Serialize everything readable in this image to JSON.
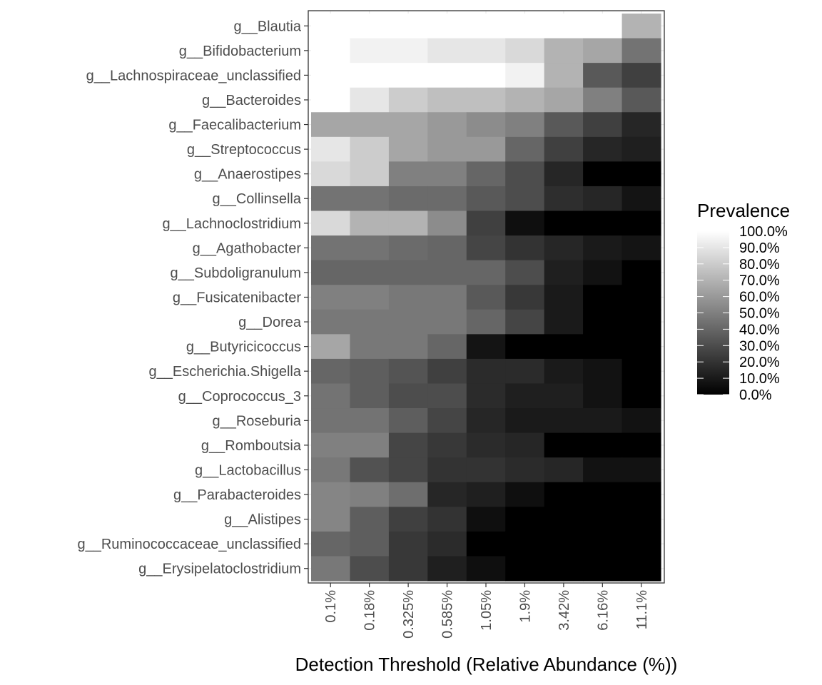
{
  "chart_data": {
    "type": "heatmap",
    "title": "",
    "xlabel": "Detection Threshold (Relative Abundance (%))",
    "ylabel": "",
    "x_categories": [
      "0.1%",
      "0.18%",
      "0.325%",
      "0.585%",
      "1.05%",
      "1.9%",
      "3.42%",
      "6.16%",
      "11.1%"
    ],
    "y_categories": [
      "g__Blautia",
      "g__Bifidobacterium",
      "g__Lachnospiraceae_unclassified",
      "g__Bacteroides",
      "g__Faecalibacterium",
      "g__Streptococcus",
      "g__Anaerostipes",
      "g__Collinsella",
      "g__Lachnoclostridium",
      "g__Agathobacter",
      "g__Subdoligranulum",
      "g__Fusicatenibacter",
      "g__Dorea",
      "g__Butyricicoccus",
      "g__Escherichia.Shigella",
      "g__Coprococcus_3",
      "g__Roseburia",
      "g__Romboutsia",
      "g__Lactobacillus",
      "g__Parabacteroides",
      "g__Alistipes",
      "g__Ruminococcaceae_unclassified",
      "g__Erysipelatoclostridium"
    ],
    "values": [
      [
        100,
        100,
        100,
        100,
        100,
        100,
        100,
        100,
        70
      ],
      [
        100,
        95,
        95,
        90,
        90,
        85,
        70,
        65,
        45
      ],
      [
        100,
        100,
        100,
        100,
        100,
        95,
        70,
        35,
        25
      ],
      [
        100,
        90,
        80,
        75,
        75,
        70,
        65,
        50,
        35
      ],
      [
        65,
        65,
        65,
        60,
        55,
        50,
        35,
        25,
        15
      ],
      [
        90,
        80,
        65,
        60,
        60,
        40,
        25,
        15,
        12
      ],
      [
        85,
        80,
        50,
        50,
        40,
        30,
        15,
        0,
        0
      ],
      [
        45,
        45,
        42,
        42,
        35,
        30,
        18,
        15,
        8
      ],
      [
        85,
        70,
        70,
        55,
        25,
        6,
        0,
        0,
        0
      ],
      [
        45,
        45,
        42,
        40,
        27,
        20,
        15,
        10,
        8
      ],
      [
        40,
        40,
        40,
        40,
        40,
        30,
        12,
        7,
        0
      ],
      [
        50,
        50,
        47,
        47,
        35,
        22,
        10,
        0,
        0
      ],
      [
        47,
        47,
        47,
        47,
        40,
        27,
        10,
        0,
        0
      ],
      [
        65,
        47,
        47,
        40,
        8,
        0,
        0,
        0,
        0
      ],
      [
        40,
        37,
        33,
        25,
        17,
        17,
        10,
        7,
        0
      ],
      [
        45,
        37,
        30,
        30,
        17,
        12,
        12,
        7,
        0
      ],
      [
        45,
        45,
        37,
        27,
        15,
        10,
        10,
        10,
        7
      ],
      [
        50,
        50,
        27,
        22,
        17,
        15,
        0,
        0,
        0
      ],
      [
        47,
        32,
        27,
        20,
        20,
        17,
        15,
        7,
        7
      ],
      [
        52,
        50,
        43,
        15,
        12,
        6,
        0,
        0,
        0
      ],
      [
        52,
        37,
        25,
        20,
        6,
        0,
        0,
        0,
        0
      ],
      [
        40,
        37,
        22,
        17,
        0,
        0,
        0,
        0,
        0
      ],
      [
        47,
        30,
        22,
        12,
        6,
        0,
        0,
        0,
        0
      ]
    ],
    "value_range": [
      0,
      100
    ],
    "grid": true,
    "legend": {
      "title": "Prevalence",
      "position": "right",
      "ticks": [
        "100.0%",
        "90.0%",
        "80.0%",
        "70.0%",
        "60.0%",
        "50.0%",
        "40.0%",
        "30.0%",
        "20.0%",
        "10.0%",
        "0.0%"
      ],
      "tick_values": [
        100,
        90,
        80,
        70,
        60,
        50,
        40,
        30,
        20,
        10,
        0
      ],
      "color_low": "#000000",
      "color_high": "#ffffff"
    },
    "panel_border_color": "#333333",
    "grid_color": "#ebebeb",
    "tick_text_color": "#4d4d4d"
  }
}
